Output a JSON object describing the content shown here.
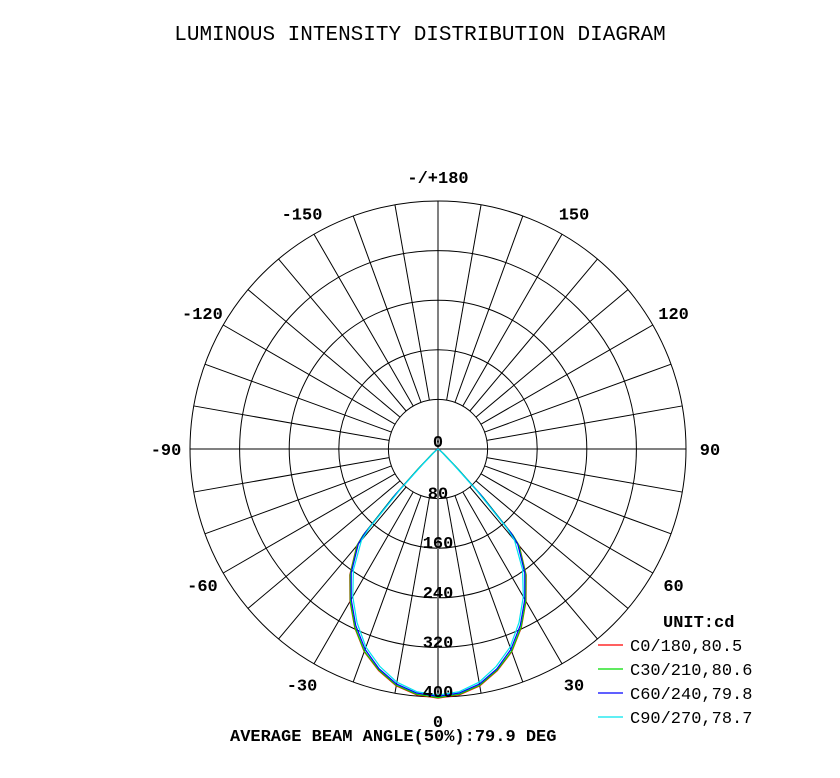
{
  "chart_data": {
    "type": "polar",
    "title": "LUMINOUS INTENSITY DISTRIBUTION DIAGRAM",
    "unit_label": "UNIT:cd",
    "footer": "AVERAGE BEAM ANGLE(50%):79.9 DEG",
    "radial_ticks": [
      0,
      80,
      160,
      240,
      320,
      400
    ],
    "radial_range": [
      0,
      400
    ],
    "angle_labels": [
      {
        "angle": 180,
        "text": "-/+180"
      },
      {
        "angle": 150,
        "text": "150"
      },
      {
        "angle": 120,
        "text": "120"
      },
      {
        "angle": 90,
        "text": "90"
      },
      {
        "angle": 60,
        "text": "60"
      },
      {
        "angle": 30,
        "text": "30"
      },
      {
        "angle": 0,
        "text": "0"
      },
      {
        "angle": -30,
        "text": "-30"
      },
      {
        "angle": -60,
        "text": "-60"
      },
      {
        "angle": -90,
        "text": "-90"
      },
      {
        "angle": -120,
        "text": "-120"
      },
      {
        "angle": -150,
        "text": "-150"
      }
    ],
    "grid_angle_step_deg": 10,
    "gamma_deg": [
      0,
      5,
      10,
      15,
      20,
      25,
      30,
      35,
      40,
      41,
      43,
      45,
      50,
      60,
      90
    ],
    "series": [
      {
        "name": "C0/180,80.5",
        "color": "#ff0000",
        "values": [
          402,
          398,
          388,
          370,
          348,
          318,
          284,
          248,
          204,
          184,
          104,
          42,
          10,
          2,
          0
        ]
      },
      {
        "name": "C30/210,80.6",
        "color": "#00dd00",
        "values": [
          401,
          397,
          387,
          369,
          347,
          317,
          283,
          247,
          203,
          185,
          108,
          46,
          12,
          2,
          0
        ]
      },
      {
        "name": "C60/240,79.8",
        "color": "#0000ff",
        "values": [
          399,
          395,
          385,
          367,
          344,
          314,
          280,
          244,
          200,
          180,
          100,
          40,
          10,
          2,
          0
        ]
      },
      {
        "name": "C90/270,78.7",
        "color": "#00e5ee",
        "values": [
          397,
          393,
          382,
          363,
          340,
          309,
          275,
          238,
          192,
          170,
          92,
          36,
          8,
          1,
          0
        ]
      }
    ]
  }
}
